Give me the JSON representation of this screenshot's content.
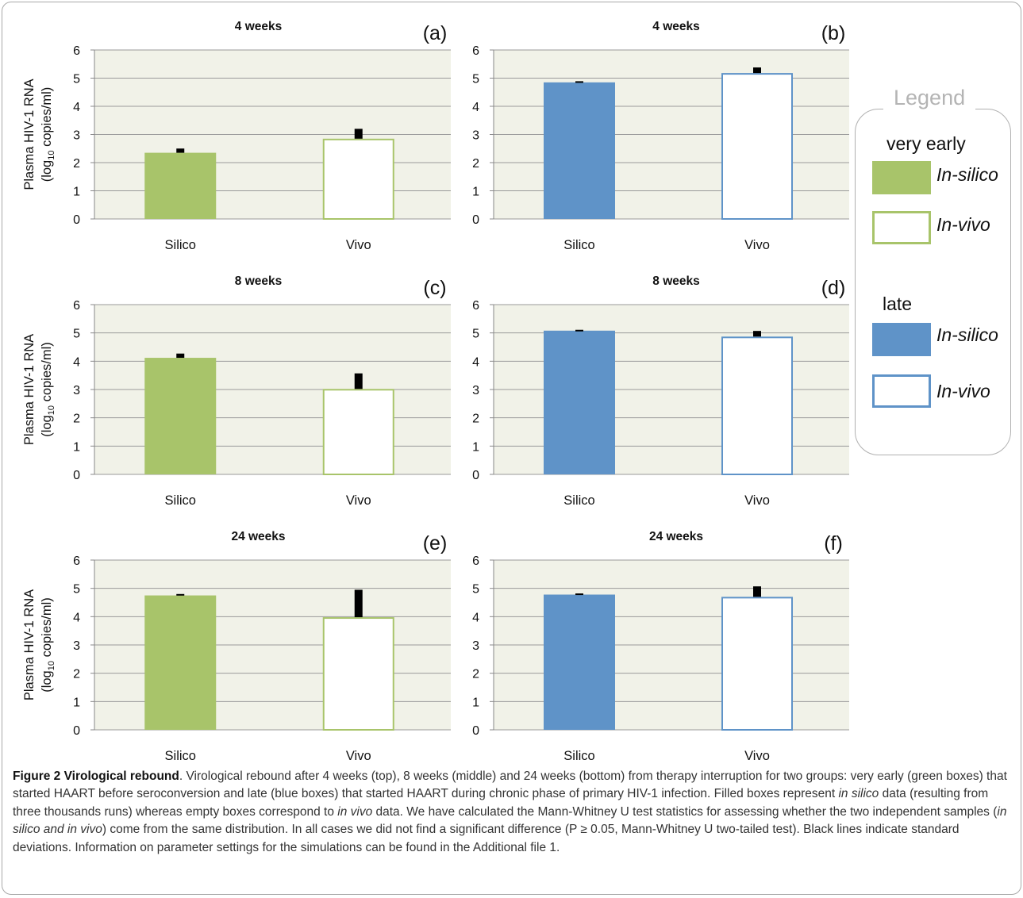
{
  "chart_data": [
    {
      "panel": "(a)",
      "title": "4 weeks",
      "type": "bar",
      "group": "very early",
      "categories": [
        "Silico",
        "Vivo"
      ],
      "values": [
        2.35,
        2.85
      ],
      "error": [
        0.15,
        0.35
      ],
      "ylabel": "Plasma HIV-1 RNA (log10 copies/ml)",
      "ylim": [
        0,
        6
      ],
      "yticks": [
        "0",
        "1",
        "2",
        "3",
        "4",
        "5",
        "6"
      ],
      "grid": true,
      "colors": {
        "fill": "#a8c46a",
        "stroke": "#a8c46a"
      }
    },
    {
      "panel": "(b)",
      "title": "4 weeks",
      "type": "bar",
      "group": "late",
      "categories": [
        "Silico",
        "Vivo"
      ],
      "values": [
        4.85,
        5.18
      ],
      "error": [
        0.04,
        0.2
      ],
      "ylabel": "",
      "ylim": [
        0,
        6
      ],
      "yticks": [
        "0",
        "1",
        "2",
        "3",
        "4",
        "5",
        "6"
      ],
      "grid": true,
      "colors": {
        "fill": "#5f93c8",
        "stroke": "#5f93c8"
      }
    },
    {
      "panel": "(c)",
      "title": "8 weeks",
      "type": "bar",
      "group": "very early",
      "categories": [
        "Silico",
        "Vivo"
      ],
      "values": [
        4.12,
        3.02
      ],
      "error": [
        0.15,
        0.55
      ],
      "ylabel": "Plasma HIV-1 RNA (log10 copies/ml)",
      "ylim": [
        0,
        6
      ],
      "yticks": [
        "0",
        "1",
        "2",
        "3",
        "4",
        "5",
        "6"
      ],
      "grid": true,
      "colors": {
        "fill": "#a8c46a",
        "stroke": "#a8c46a"
      }
    },
    {
      "panel": "(d)",
      "title": "8 weeks",
      "type": "bar",
      "group": "late",
      "categories": [
        "Silico",
        "Vivo"
      ],
      "values": [
        5.08,
        4.87
      ],
      "error": [
        0.03,
        0.2
      ],
      "ylabel": "",
      "ylim": [
        0,
        6
      ],
      "yticks": [
        "0",
        "1",
        "2",
        "3",
        "4",
        "5",
        "6"
      ],
      "grid": true,
      "colors": {
        "fill": "#5f93c8",
        "stroke": "#5f93c8"
      }
    },
    {
      "panel": "(e)",
      "title": "24 weeks",
      "type": "bar",
      "group": "very early",
      "categories": [
        "Silico",
        "Vivo"
      ],
      "values": [
        4.75,
        3.98
      ],
      "error": [
        0.05,
        0.97
      ],
      "ylabel": "Plasma HIV-1 RNA (log10 copies/ml)",
      "ylim": [
        0,
        6
      ],
      "yticks": [
        "0",
        "1",
        "2",
        "3",
        "4",
        "5",
        "6"
      ],
      "grid": true,
      "colors": {
        "fill": "#a8c46a",
        "stroke": "#a8c46a"
      }
    },
    {
      "panel": "(f)",
      "title": "24 weeks",
      "type": "bar",
      "group": "late",
      "categories": [
        "Silico",
        "Vivo"
      ],
      "values": [
        4.78,
        4.7
      ],
      "error": [
        0.04,
        0.37
      ],
      "ylabel": "",
      "ylim": [
        0,
        6
      ],
      "yticks": [
        "0",
        "1",
        "2",
        "3",
        "4",
        "5",
        "6"
      ],
      "grid": true,
      "colors": {
        "fill": "#5f93c8",
        "stroke": "#5f93c8"
      }
    }
  ],
  "ylabel_line1": "Plasma HIV-1 RNA",
  "ylabel_line2_prefix": "(log",
  "ylabel_line2_sub": "10",
  "ylabel_line2_suffix": " copies/ml)",
  "legend": {
    "title": "Legend",
    "group1": "very early",
    "group2": "late",
    "insilico": "In-silico",
    "invivo": "In-vivo",
    "colors": {
      "very_early": "#a8c46a",
      "late": "#5f93c8"
    }
  },
  "caption": {
    "label": "Figure 2",
    "title": "Virological rebound",
    "parts": [
      ". Virological rebound after 4 weeks (top), 8 weeks (middle) and 24 weeks (bottom) from therapy interruption for two groups: very early (green boxes) that started HAART before seroconversion and late (blue boxes) that started HAART during chronic phase of primary HIV-1 infection. Filled boxes represent ",
      "in silico",
      " data (resulting from three thousands runs) whereas empty boxes correspond to ",
      "in vivo",
      " data. We have calculated the Mann-Whitney U test statistics for assessing whether the two independent samples (",
      "in silico and in vivo",
      ") come from the same distribution. In all cases we did not find a significant difference (P ≥ 0.05, Mann-Whitney U two-tailed test). Black lines indicate standard deviations. Information on parameter settings for the simulations can be found in the Additional file 1."
    ]
  }
}
